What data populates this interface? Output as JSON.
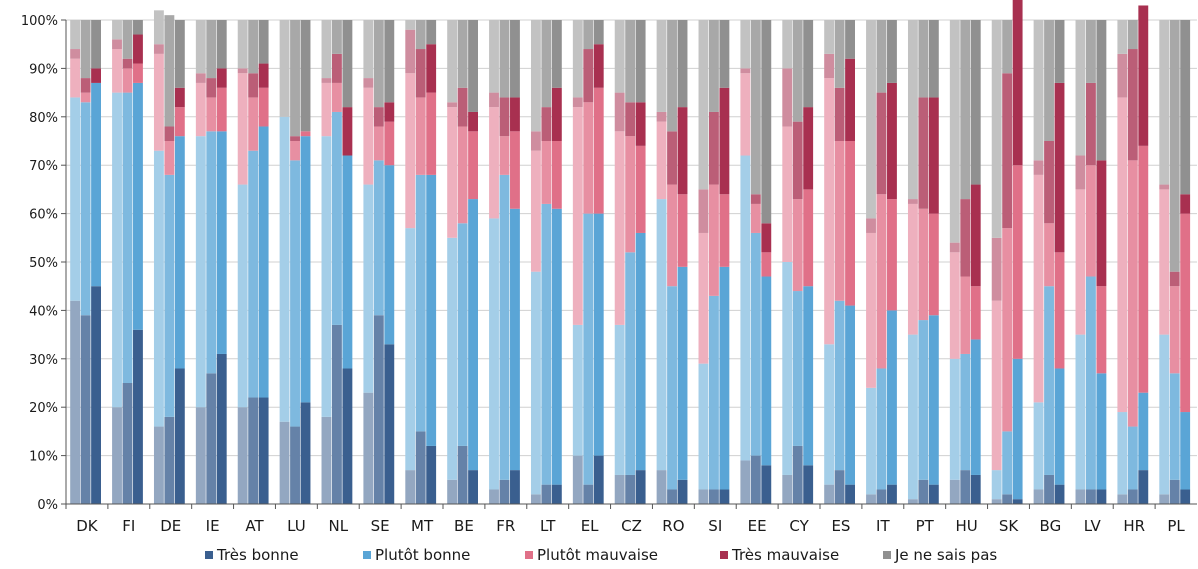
{
  "chart_data": {
    "type": "bar",
    "stacked": true,
    "bars_per_category": 3,
    "bar_shading": "light-to-dark",
    "title": "",
    "xlabel": "",
    "ylabel": "",
    "ylim": [
      0,
      100
    ],
    "yticks": [
      "0%",
      "10%",
      "20%",
      "30%",
      "40%",
      "50%",
      "60%",
      "70%",
      "80%",
      "90%",
      "100%"
    ],
    "grid": true,
    "legend_position": "bottom",
    "categories": [
      "DK",
      "FI",
      "DE",
      "IE",
      "AT",
      "LU",
      "NL",
      "SE",
      "MT",
      "BE",
      "FR",
      "LT",
      "EL",
      "CZ",
      "RO",
      "SI",
      "EE",
      "CY",
      "ES",
      "IT",
      "PT",
      "HU",
      "SK",
      "BG",
      "LV",
      "HR",
      "PL"
    ],
    "series": [
      {
        "name": "Très bonne",
        "color": "#3a5f8f",
        "values": [
          [
            42,
            39,
            45
          ],
          [
            20,
            25,
            36
          ],
          [
            16,
            18,
            28
          ],
          [
            20,
            27,
            31
          ],
          [
            20,
            22,
            22
          ],
          [
            17,
            16,
            21
          ],
          [
            18,
            37,
            28
          ],
          [
            23,
            39,
            33
          ],
          [
            7,
            15,
            12
          ],
          [
            5,
            12,
            7
          ],
          [
            3,
            5,
            7
          ],
          [
            2,
            4,
            4
          ],
          [
            10,
            4,
            10
          ],
          [
            6,
            6,
            7
          ],
          [
            7,
            3,
            5
          ],
          [
            3,
            3,
            3
          ],
          [
            9,
            10,
            8
          ],
          [
            6,
            12,
            8
          ],
          [
            4,
            7,
            4
          ],
          [
            2,
            3,
            4
          ],
          [
            1,
            5,
            4
          ],
          [
            5,
            7,
            6
          ],
          [
            1,
            2,
            1
          ],
          [
            3,
            6,
            4
          ],
          [
            3,
            3,
            3
          ],
          [
            2,
            3,
            7
          ],
          [
            2,
            5,
            3
          ]
        ]
      },
      {
        "name": "Plutôt bonne",
        "color": "#5aa5d6",
        "values": [
          [
            42,
            44,
            42
          ],
          [
            65,
            60,
            51
          ],
          [
            57,
            50,
            48
          ],
          [
            56,
            50,
            46
          ],
          [
            46,
            51,
            56
          ],
          [
            63,
            55,
            55
          ],
          [
            58,
            44,
            44
          ],
          [
            43,
            32,
            37
          ],
          [
            50,
            53,
            56
          ],
          [
            50,
            46,
            56
          ],
          [
            56,
            63,
            54
          ],
          [
            46,
            58,
            57
          ],
          [
            27,
            56,
            50
          ],
          [
            31,
            46,
            49
          ],
          [
            56,
            42,
            44
          ],
          [
            26,
            40,
            46
          ],
          [
            63,
            46,
            39
          ],
          [
            44,
            32,
            37
          ],
          [
            29,
            35,
            37
          ],
          [
            22,
            25,
            36
          ],
          [
            34,
            33,
            35
          ],
          [
            25,
            24,
            28
          ],
          [
            6,
            13,
            29
          ],
          [
            18,
            39,
            24
          ],
          [
            32,
            44,
            24
          ],
          [
            17,
            13,
            16
          ],
          [
            33,
            22,
            16
          ]
        ]
      },
      {
        "name": "Plutôt mauvaise",
        "color": "#e07088",
        "values": [
          [
            8,
            2,
            0
          ],
          [
            9,
            5,
            4
          ],
          [
            20,
            7,
            6
          ],
          [
            11,
            7,
            9
          ],
          [
            23,
            11,
            8
          ],
          [
            0,
            4,
            1
          ],
          [
            11,
            6,
            0
          ],
          [
            20,
            7,
            9
          ],
          [
            32,
            16,
            17
          ],
          [
            27,
            20,
            14
          ],
          [
            23,
            8,
            16
          ],
          [
            25,
            13,
            14
          ],
          [
            45,
            23,
            26
          ],
          [
            40,
            24,
            18
          ],
          [
            16,
            21,
            15
          ],
          [
            27,
            23,
            15
          ],
          [
            17,
            6,
            5
          ],
          [
            28,
            19,
            20
          ],
          [
            55,
            33,
            34
          ],
          [
            32,
            36,
            23
          ],
          [
            27,
            23,
            21
          ],
          [
            22,
            16,
            11
          ],
          [
            35,
            42,
            40
          ],
          [
            47,
            13,
            24
          ],
          [
            30,
            23,
            18
          ],
          [
            65,
            55,
            51
          ],
          [
            30,
            18,
            41
          ]
        ]
      },
      {
        "name": "Très mauvaise",
        "color": "#a83050",
        "values": [
          [
            2,
            3,
            3
          ],
          [
            2,
            2,
            6
          ],
          [
            2,
            3,
            4
          ],
          [
            2,
            4,
            4
          ],
          [
            1,
            5,
            5
          ],
          [
            0,
            1,
            0
          ],
          [
            1,
            6,
            10
          ],
          [
            2,
            4,
            4
          ],
          [
            9,
            10,
            10
          ],
          [
            1,
            8,
            4
          ],
          [
            3,
            8,
            7
          ],
          [
            4,
            7,
            11
          ],
          [
            2,
            11,
            9
          ],
          [
            8,
            7,
            9
          ],
          [
            2,
            11,
            18
          ],
          [
            9,
            15,
            22
          ],
          [
            1,
            2,
            6
          ],
          [
            12,
            16,
            17
          ],
          [
            5,
            11,
            17
          ],
          [
            3,
            21,
            24
          ],
          [
            1,
            23,
            24
          ],
          [
            2,
            16,
            21
          ],
          [
            13,
            32,
            39
          ],
          [
            3,
            17,
            35
          ],
          [
            7,
            17,
            26
          ],
          [
            9,
            23,
            29
          ],
          [
            1,
            3,
            4
          ]
        ]
      },
      {
        "name": "Je ne sais pas",
        "color": "#909090",
        "values": [
          [
            6,
            12,
            10
          ],
          [
            4,
            8,
            3
          ],
          [
            7,
            23,
            14
          ],
          [
            11,
            12,
            10
          ],
          [
            10,
            11,
            9
          ],
          [
            20,
            24,
            23
          ],
          [
            12,
            7,
            18
          ],
          [
            12,
            18,
            17
          ],
          [
            2,
            6,
            5
          ],
          [
            17,
            14,
            19
          ],
          [
            15,
            16,
            16
          ],
          [
            23,
            18,
            14
          ],
          [
            16,
            6,
            5
          ],
          [
            15,
            17,
            17
          ],
          [
            19,
            23,
            18
          ],
          [
            35,
            19,
            14
          ],
          [
            10,
            36,
            42
          ],
          [
            10,
            21,
            18
          ],
          [
            7,
            14,
            8
          ],
          [
            41,
            15,
            13
          ],
          [
            37,
            16,
            16
          ],
          [
            46,
            37,
            34
          ],
          [
            45,
            11,
            9
          ],
          [
            29,
            25,
            13
          ],
          [
            28,
            13,
            29
          ],
          [
            7,
            6,
            0
          ],
          [
            34,
            52,
            36
          ]
        ]
      }
    ]
  }
}
